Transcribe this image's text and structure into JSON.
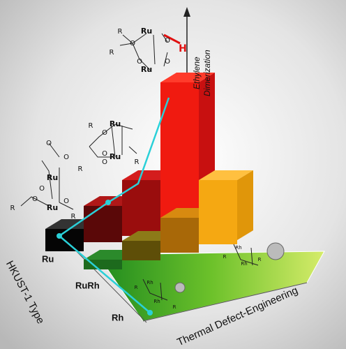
{
  "axis_labels": {
    "z_axis": [
      "Ethylene",
      "Dimerization"
    ],
    "y_axis": "HKUST-1 Type",
    "x_axis": "Thermal Defect-Engineering"
  },
  "rows": [
    "Ru",
    "RuRh",
    "Rh"
  ],
  "molecules": [
    {
      "atoms": [
        "R",
        "Ru",
        "O",
        "R",
        "O",
        "Ru",
        "H",
        "O",
        "O"
      ]
    },
    {
      "atoms": [
        "R",
        "Ru",
        "O",
        "O",
        "R",
        "Ru",
        "O",
        "R"
      ]
    },
    {
      "atoms": [
        "O",
        "O",
        "Ru",
        "O",
        "R",
        "Ru",
        "O",
        "O",
        "R"
      ]
    },
    {
      "atoms": [
        "Rh",
        "Rh",
        "R",
        "R"
      ]
    },
    {
      "atoms": [
        "Rh",
        "Rh",
        "R",
        "R"
      ]
    }
  ]
}
